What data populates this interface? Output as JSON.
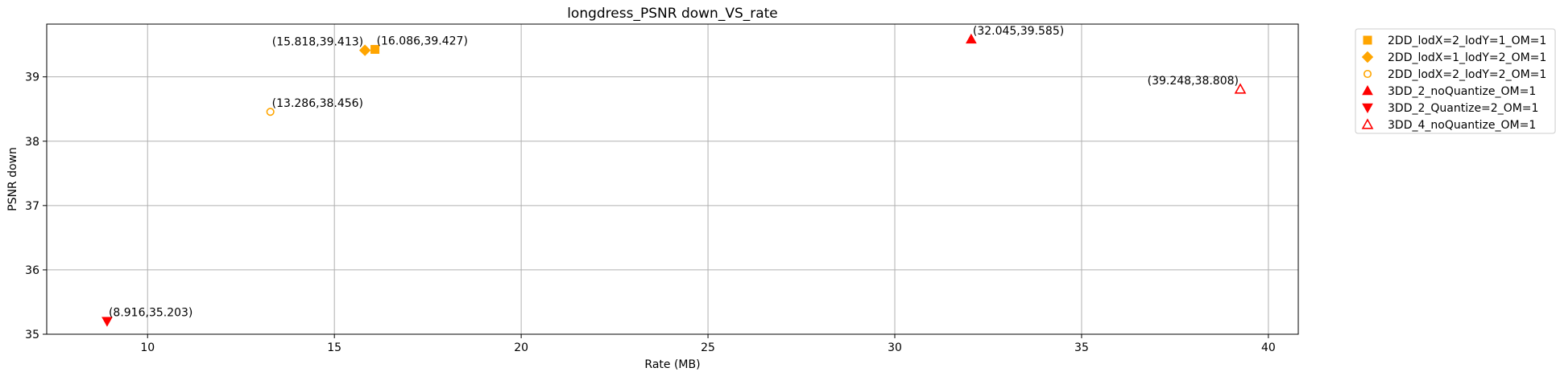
{
  "chart_data": {
    "type": "scatter",
    "title": "longdress_PSNR down_VS_rate",
    "xlabel": "Rate (MB)",
    "ylabel": "PSNR down",
    "xlim": [
      7.3,
      40.8
    ],
    "ylim": [
      35.0,
      39.82
    ],
    "xticks": [
      10,
      15,
      20,
      25,
      30,
      35,
      40
    ],
    "yticks": [
      35,
      36,
      37,
      38,
      39
    ],
    "grid": true,
    "legend_position": "outside-top-right",
    "series": [
      {
        "name": "2DD_lodX=2_lodY=1_OM=1",
        "marker": "square",
        "color": "#FFA500",
        "filled": true,
        "points": [
          {
            "x": 16.086,
            "y": 39.427,
            "label": "(16.086,39.427)",
            "anchor": "right"
          }
        ]
      },
      {
        "name": "2DD_lodX=1_lodY=2_OM=1",
        "marker": "diamond",
        "color": "#FFA500",
        "filled": true,
        "points": [
          {
            "x": 15.818,
            "y": 39.413,
            "label": "(15.818,39.413)",
            "anchor": "left"
          }
        ]
      },
      {
        "name": "2DD_lodX=2_lodY=2_OM=1",
        "marker": "circle",
        "color": "#FFA500",
        "filled": false,
        "points": [
          {
            "x": 13.286,
            "y": 38.456,
            "label": "(13.286,38.456)",
            "anchor": "right"
          }
        ]
      },
      {
        "name": "3DD_2_noQuantize_OM=1",
        "marker": "triangle-up",
        "color": "#FF0000",
        "filled": true,
        "points": [
          {
            "x": 32.045,
            "y": 39.585,
            "label": "(32.045,39.585)",
            "anchor": "right"
          }
        ]
      },
      {
        "name": "3DD_2_Quantize=2_OM=1",
        "marker": "triangle-down",
        "color": "#FF0000",
        "filled": true,
        "points": [
          {
            "x": 8.916,
            "y": 35.203,
            "label": "(8.916,35.203)",
            "anchor": "right"
          }
        ]
      },
      {
        "name": "3DD_4_noQuantize_OM=1",
        "marker": "triangle-up",
        "color": "#FF0000",
        "filled": false,
        "points": [
          {
            "x": 39.248,
            "y": 38.808,
            "label": "(39.248,38.808)",
            "anchor": "left"
          }
        ]
      }
    ]
  }
}
